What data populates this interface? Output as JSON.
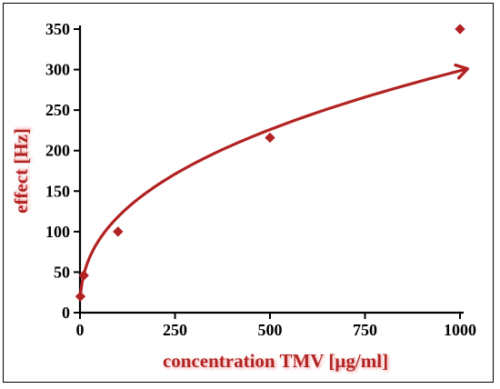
{
  "chart_data": {
    "type": "scatter",
    "xlabel": "concentration TMV [µg/ml]",
    "ylabel": "effect [Hz]",
    "xlim": [
      0,
      1000
    ],
    "ylim": [
      0,
      350
    ],
    "xticks": [
      0,
      250,
      500,
      750,
      1000
    ],
    "yticks": [
      0,
      50,
      100,
      150,
      200,
      250,
      300,
      350
    ],
    "grid": false,
    "series": [
      {
        "points": [
          {
            "x": 1,
            "y": 20
          },
          {
            "x": 10,
            "y": 46
          },
          {
            "x": 100,
            "y": 100
          },
          {
            "x": 500,
            "y": 216
          },
          {
            "x": 1000,
            "y": 350
          }
        ],
        "fit": "power",
        "color": "#b22222"
      }
    ],
    "label_color": "#b22222",
    "label_shadow": "#f4a3a3",
    "axis_color": "#000000",
    "marker": "diamond",
    "fit_end_marker": "arrow"
  }
}
